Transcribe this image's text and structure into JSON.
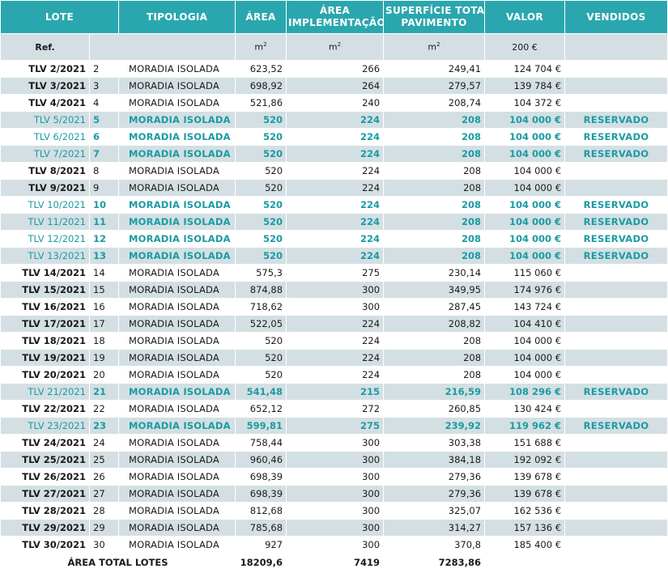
{
  "headers": {
    "lote": "LOTE",
    "tipologia": "TIPOLOGIA",
    "area": "ÁREA",
    "area_impl_1": "ÁREA",
    "area_impl_2": "IMPLEMENTAÇÃO",
    "sup_1": "SUPERFÍCIE TOTAL",
    "sup_2": "PAVIMENTO",
    "valor": "VALOR",
    "vendidos": "VENDIDOS"
  },
  "units": {
    "ref": "Ref.",
    "area_base": "m",
    "impl_base": "m",
    "sup_base": "m",
    "exp": "2",
    "valor": "200 €"
  },
  "colors": {
    "header_bg": "#2aa7ae",
    "stripe": "#d3dfe3",
    "reserved_text": "#1b9ba3"
  },
  "rows": [
    {
      "ref": "TLV 2/2021",
      "num": "2",
      "tipologia": "MORADIA ISOLADA",
      "area": "623,52",
      "impl": "266",
      "sup": "249,41",
      "valor": "124 704 €",
      "vendidos": ""
    },
    {
      "ref": "TLV 3/2021",
      "num": "3",
      "tipologia": "MORADIA ISOLADA",
      "area": "698,92",
      "impl": "264",
      "sup": "279,57",
      "valor": "139 784 €",
      "vendidos": ""
    },
    {
      "ref": "TLV 4/2021",
      "num": "4",
      "tipologia": "MORADIA ISOLADA",
      "area": "521,86",
      "impl": "240",
      "sup": "208,74",
      "valor": "104 372 €",
      "vendidos": ""
    },
    {
      "ref": "TLV 5/2021",
      "num": "5",
      "tipologia": "MORADIA ISOLADA",
      "area": "520",
      "impl": "224",
      "sup": "208",
      "valor": "104 000 €",
      "vendidos": "RESERVADO"
    },
    {
      "ref": "TLV 6/2021",
      "num": "6",
      "tipologia": "MORADIA ISOLADA",
      "area": "520",
      "impl": "224",
      "sup": "208",
      "valor": "104 000 €",
      "vendidos": "RESERVADO"
    },
    {
      "ref": "TLV 7/2021",
      "num": "7",
      "tipologia": "MORADIA ISOLADA",
      "area": "520",
      "impl": "224",
      "sup": "208",
      "valor": "104 000 €",
      "vendidos": "RESERVADO"
    },
    {
      "ref": "TLV 8/2021",
      "num": "8",
      "tipologia": "MORADIA ISOLADA",
      "area": "520",
      "impl": "224",
      "sup": "208",
      "valor": "104 000 €",
      "vendidos": ""
    },
    {
      "ref": "TLV 9/2021",
      "num": "9",
      "tipologia": "MORADIA ISOLADA",
      "area": "520",
      "impl": "224",
      "sup": "208",
      "valor": "104 000 €",
      "vendidos": ""
    },
    {
      "ref": "TLV 10/2021",
      "num": "10",
      "tipologia": "MORADIA ISOLADA",
      "area": "520",
      "impl": "224",
      "sup": "208",
      "valor": "104 000 €",
      "vendidos": "RESERVADO"
    },
    {
      "ref": "TLV 11/2021",
      "num": "11",
      "tipologia": "MORADIA ISOLADA",
      "area": "520",
      "impl": "224",
      "sup": "208",
      "valor": "104 000 €",
      "vendidos": "RESERVADO"
    },
    {
      "ref": "TLV 12/2021",
      "num": "12",
      "tipologia": "MORADIA ISOLADA",
      "area": "520",
      "impl": "224",
      "sup": "208",
      "valor": "104 000 €",
      "vendidos": "RESERVADO"
    },
    {
      "ref": "TLV 13/2021",
      "num": "13",
      "tipologia": "MORADIA ISOLADA",
      "area": "520",
      "impl": "224",
      "sup": "208",
      "valor": "104 000 €",
      "vendidos": "RESERVADO"
    },
    {
      "ref": "TLV 14/2021",
      "num": "14",
      "tipologia": "MORADIA ISOLADA",
      "area": "575,3",
      "impl": "275",
      "sup": "230,14",
      "valor": "115 060 €",
      "vendidos": ""
    },
    {
      "ref": "TLV 15/2021",
      "num": "15",
      "tipologia": "MORADIA ISOLADA",
      "area": "874,88",
      "impl": "300",
      "sup": "349,95",
      "valor": "174 976 €",
      "vendidos": ""
    },
    {
      "ref": "TLV 16/2021",
      "num": "16",
      "tipologia": "MORADIA ISOLADA",
      "area": "718,62",
      "impl": "300",
      "sup": "287,45",
      "valor": "143 724 €",
      "vendidos": ""
    },
    {
      "ref": "TLV 17/2021",
      "num": "17",
      "tipologia": "MORADIA ISOLADA",
      "area": "522,05",
      "impl": "224",
      "sup": "208,82",
      "valor": "104 410 €",
      "vendidos": ""
    },
    {
      "ref": "TLV 18/2021",
      "num": "18",
      "tipologia": "MORADIA ISOLADA",
      "area": "520",
      "impl": "224",
      "sup": "208",
      "valor": "104 000 €",
      "vendidos": ""
    },
    {
      "ref": "TLV 19/2021",
      "num": "19",
      "tipologia": "MORADIA ISOLADA",
      "area": "520",
      "impl": "224",
      "sup": "208",
      "valor": "104 000 €",
      "vendidos": ""
    },
    {
      "ref": "TLV 20/2021",
      "num": "20",
      "tipologia": "MORADIA ISOLADA",
      "area": "520",
      "impl": "224",
      "sup": "208",
      "valor": "104 000 €",
      "vendidos": ""
    },
    {
      "ref": "TLV 21/2021",
      "num": "21",
      "tipologia": "MORADIA ISOLADA",
      "area": "541,48",
      "impl": "215",
      "sup": "216,59",
      "valor": "108 296 €",
      "vendidos": "RESERVADO"
    },
    {
      "ref": "TLV 22/2021",
      "num": "22",
      "tipologia": "MORADIA ISOLADA",
      "area": "652,12",
      "impl": "272",
      "sup": "260,85",
      "valor": "130 424 €",
      "vendidos": ""
    },
    {
      "ref": "TLV 23/2021",
      "num": "23",
      "tipologia": "MORADIA ISOLADA",
      "area": "599,81",
      "impl": "275",
      "sup": "239,92",
      "valor": "119 962 €",
      "vendidos": "RESERVADO"
    },
    {
      "ref": "TLV 24/2021",
      "num": "24",
      "tipologia": "MORADIA ISOLADA",
      "area": "758,44",
      "impl": "300",
      "sup": "303,38",
      "valor": "151 688 €",
      "vendidos": ""
    },
    {
      "ref": "TLV 25/2021",
      "num": "25",
      "tipologia": "MORADIA ISOLADA",
      "area": "960,46",
      "impl": "300",
      "sup": "384,18",
      "valor": "192 092 €",
      "vendidos": ""
    },
    {
      "ref": "TLV 26/2021",
      "num": "26",
      "tipologia": "MORADIA ISOLADA",
      "area": "698,39",
      "impl": "300",
      "sup": "279,36",
      "valor": "139 678 €",
      "vendidos": ""
    },
    {
      "ref": "TLV 27/2021",
      "num": "27",
      "tipologia": "MORADIA ISOLADA",
      "area": "698,39",
      "impl": "300",
      "sup": "279,36",
      "valor": "139 678 €",
      "vendidos": ""
    },
    {
      "ref": "TLV 28/2021",
      "num": "28",
      "tipologia": "MORADIA ISOLADA",
      "area": "812,68",
      "impl": "300",
      "sup": "325,07",
      "valor": "162 536 €",
      "vendidos": ""
    },
    {
      "ref": "TLV 29/2021",
      "num": "29",
      "tipologia": "MORADIA ISOLADA",
      "area": "785,68",
      "impl": "300",
      "sup": "314,27",
      "valor": "157 136 €",
      "vendidos": ""
    },
    {
      "ref": "TLV 30/2021",
      "num": "30",
      "tipologia": "MORADIA ISOLADA",
      "area": "927",
      "impl": "300",
      "sup": "370,8",
      "valor": "185 400 €",
      "vendidos": ""
    }
  ],
  "totals": {
    "label": "ÁREA TOTAL LOTES",
    "area": "18209,6",
    "impl": "7419",
    "sup": "7283,86"
  }
}
